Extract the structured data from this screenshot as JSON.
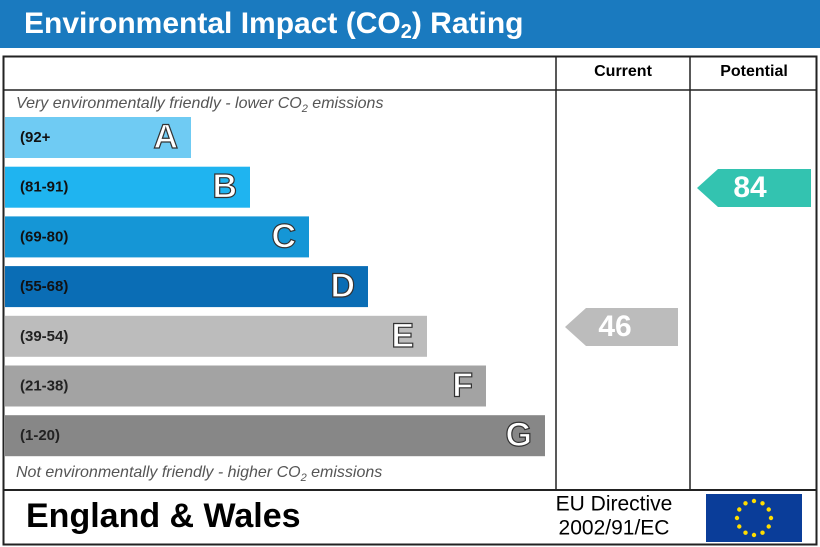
{
  "title": {
    "main": "Environmental Impact (CO",
    "sub": "2",
    "end": ") Rating"
  },
  "columns": {
    "current": "Current",
    "potential": "Potential"
  },
  "top_note": {
    "main": "Very environmentally friendly - lower CO",
    "sub": "2",
    "end": " emissions"
  },
  "bottom_note": {
    "main": "Not environmentally friendly - higher CO",
    "sub": "2",
    "end": " emissions"
  },
  "bands": [
    {
      "range": "(92+",
      "letter": "A",
      "color": "#6fcbf3"
    },
    {
      "range": "(81-91)",
      "letter": "B",
      "color": "#1fb4f0"
    },
    {
      "range": "(69-80)",
      "letter": "C",
      "color": "#1596d6"
    },
    {
      "range": "(55-68)",
      "letter": "D",
      "color": "#0a6db5"
    },
    {
      "range": "(39-54)",
      "letter": "E",
      "color": "#bcbcbc"
    },
    {
      "range": "(21-38)",
      "letter": "F",
      "color": "#a3a3a3"
    },
    {
      "range": "(1-20)",
      "letter": "G",
      "color": "#878787"
    }
  ],
  "current": {
    "value": "46",
    "color": "#bcbcbc"
  },
  "potential": {
    "value": "84",
    "color": "#33c3b0"
  },
  "footer": {
    "region": "England & Wales",
    "directive_line1": "EU Directive",
    "directive_line2": "2002/91/EC"
  }
}
